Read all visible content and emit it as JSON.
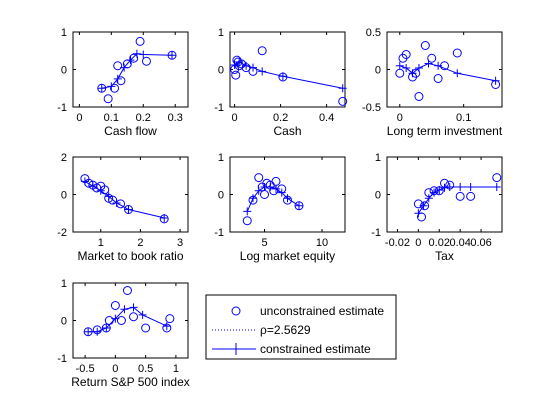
{
  "colors": {
    "series": "#0000ff",
    "axes": "#000000"
  },
  "legend": {
    "entries": [
      "unconstrained estimate",
      "ρ=2.5629",
      "constrained estimate"
    ],
    "styles": [
      "circle-marker",
      "dotted-line",
      "line-plus-marker"
    ]
  },
  "chart_data": [
    {
      "type": "scatter",
      "xlabel": "Cash flow",
      "xlim": [
        -0.02,
        0.34
      ],
      "ylim": [
        -1,
        1
      ],
      "xticks": [
        0,
        0.1,
        0.2,
        0.3
      ],
      "xtick_labels": [
        "0",
        "0.1",
        "0.2",
        "0.3"
      ],
      "yticks": [
        -1,
        0,
        1
      ],
      "ytick_labels": [
        "-1",
        "0",
        "1"
      ],
      "unconstrained": {
        "x": [
          0.07,
          0.09,
          0.11,
          0.12,
          0.13,
          0.15,
          0.17,
          0.19,
          0.21,
          0.29
        ],
        "y": [
          -0.5,
          -0.78,
          -0.5,
          0.1,
          -0.3,
          0.15,
          0.3,
          0.75,
          0.22,
          0.38
        ]
      },
      "constrained": {
        "x": [
          0.07,
          0.1,
          0.12,
          0.14,
          0.16,
          0.18,
          0.2,
          0.29
        ],
        "y": [
          -0.5,
          -0.45,
          -0.25,
          0.05,
          0.25,
          0.42,
          0.4,
          0.38
        ]
      }
    },
    {
      "type": "scatter",
      "xlabel": "Cash",
      "xlim": [
        -0.02,
        0.48
      ],
      "ylim": [
        -1,
        1
      ],
      "xticks": [
        0,
        0.2,
        0.4
      ],
      "xtick_labels": [
        "0",
        "0.2",
        "0.4"
      ],
      "yticks": [
        -1,
        0,
        1
      ],
      "ytick_labels": [
        "-1",
        "0",
        "1"
      ],
      "unconstrained": {
        "x": [
          0.0,
          0.005,
          0.01,
          0.015,
          0.02,
          0.03,
          0.05,
          0.08,
          0.12,
          0.21,
          0.47
        ],
        "y": [
          0.0,
          -0.15,
          0.25,
          0.2,
          0.1,
          0.15,
          0.05,
          -0.05,
          0.5,
          -0.2,
          -0.85
        ]
      },
      "constrained": {
        "x": [
          0.0,
          0.02,
          0.05,
          0.08,
          0.12,
          0.21,
          0.47
        ],
        "y": [
          0.12,
          0.2,
          0.1,
          0.05,
          -0.05,
          -0.18,
          -0.5
        ]
      }
    },
    {
      "type": "scatter",
      "xlabel": "Long term investment",
      "xlim": [
        -0.02,
        0.16
      ],
      "ylim": [
        -0.5,
        0.5
      ],
      "xticks": [
        0,
        0.1
      ],
      "xtick_labels": [
        "0",
        "0.1"
      ],
      "yticks": [
        -0.5,
        0,
        0.5
      ],
      "ytick_labels": [
        "-0.5",
        "0",
        "0.5"
      ],
      "unconstrained": {
        "x": [
          0.0,
          0.005,
          0.01,
          0.02,
          0.025,
          0.03,
          0.04,
          0.05,
          0.06,
          0.07,
          0.09,
          0.15
        ],
        "y": [
          -0.05,
          0.15,
          0.2,
          -0.1,
          -0.05,
          -0.36,
          0.32,
          0.15,
          -0.12,
          0.05,
          0.22,
          -0.2
        ]
      },
      "constrained": {
        "x": [
          0.0,
          0.01,
          0.02,
          0.03,
          0.045,
          0.06,
          0.09,
          0.15
        ],
        "y": [
          0.05,
          0.02,
          -0.05,
          0.02,
          0.08,
          0.05,
          -0.05,
          -0.15
        ]
      }
    },
    {
      "type": "scatter",
      "xlabel": "Market to book ratio",
      "xlim": [
        0.3,
        3.2
      ],
      "ylim": [
        -2,
        2
      ],
      "xticks": [
        1,
        2,
        3
      ],
      "xtick_labels": [
        "1",
        "2",
        "3"
      ],
      "yticks": [
        -2,
        0,
        2
      ],
      "ytick_labels": [
        "-2",
        "0",
        "2"
      ],
      "unconstrained": {
        "x": [
          0.6,
          0.7,
          0.8,
          0.9,
          1.0,
          1.1,
          1.2,
          1.3,
          1.5,
          1.7,
          2.6
        ],
        "y": [
          0.85,
          0.6,
          0.5,
          0.35,
          0.45,
          0.25,
          -0.2,
          -0.3,
          -0.5,
          -0.8,
          -1.3
        ]
      },
      "constrained": {
        "x": [
          0.6,
          0.8,
          1.0,
          1.2,
          1.4,
          1.7,
          2.6
        ],
        "y": [
          0.7,
          0.45,
          0.2,
          -0.1,
          -0.45,
          -0.8,
          -1.25
        ]
      }
    },
    {
      "type": "scatter",
      "xlabel": "Log market equity",
      "xlim": [
        2,
        12
      ],
      "ylim": [
        -1,
        1
      ],
      "xticks": [
        5,
        10
      ],
      "xtick_labels": [
        "5",
        "10"
      ],
      "yticks": [
        -1,
        0,
        1
      ],
      "ytick_labels": [
        "-1",
        "0",
        "1"
      ],
      "unconstrained": {
        "x": [
          3.5,
          4.0,
          4.5,
          4.8,
          5.0,
          5.2,
          5.5,
          5.8,
          6.0,
          6.5,
          7.0,
          8.0
        ],
        "y": [
          -0.7,
          -0.15,
          0.45,
          0.2,
          0.0,
          0.3,
          0.25,
          0.1,
          0.35,
          0.15,
          -0.15,
          -0.3
        ]
      },
      "constrained": {
        "x": [
          3.5,
          4.0,
          4.5,
          5.0,
          5.5,
          6.0,
          6.5,
          7.0,
          8.0
        ],
        "y": [
          -0.45,
          -0.1,
          0.1,
          0.2,
          0.2,
          0.15,
          0.05,
          -0.1,
          -0.3
        ]
      }
    },
    {
      "type": "scatter",
      "xlabel": "Tax",
      "xlim": [
        -0.03,
        0.08
      ],
      "ylim": [
        -1,
        1
      ],
      "xticks": [
        -0.02,
        0,
        0.02,
        0.04,
        0.06
      ],
      "xtick_labels": [
        "-0.02",
        "0",
        "0.02",
        "0.04",
        "0.06"
      ],
      "yticks": [
        -1,
        0,
        1
      ],
      "ytick_labels": [
        "-1",
        "0",
        "1"
      ],
      "unconstrained": {
        "x": [
          0.0,
          0.003,
          0.006,
          0.01,
          0.015,
          0.02,
          0.025,
          0.03,
          0.04,
          0.05,
          0.075
        ],
        "y": [
          -0.25,
          -0.6,
          -0.3,
          0.05,
          0.1,
          0.1,
          0.3,
          0.25,
          -0.05,
          -0.05,
          0.45
        ]
      },
      "constrained": {
        "x": [
          0.0,
          0.005,
          0.01,
          0.015,
          0.02,
          0.025,
          0.03,
          0.04,
          0.05,
          0.075
        ],
        "y": [
          -0.5,
          -0.3,
          -0.1,
          0.05,
          0.12,
          0.18,
          0.2,
          0.2,
          0.2,
          0.2
        ]
      }
    },
    {
      "type": "scatter",
      "xlabel": "Return S&P 500 index",
      "xlim": [
        -0.7,
        1.2
      ],
      "ylim": [
        -1,
        1
      ],
      "xticks": [
        -0.5,
        0,
        0.5,
        1
      ],
      "xtick_labels": [
        "-0.5",
        "0",
        "0.5",
        "1"
      ],
      "yticks": [
        -1,
        0,
        1
      ],
      "ytick_labels": [
        "-1",
        "0",
        "1"
      ],
      "unconstrained": {
        "x": [
          -0.45,
          -0.3,
          -0.15,
          -0.1,
          0.0,
          0.1,
          0.2,
          0.3,
          0.5,
          0.85,
          0.9
        ],
        "y": [
          -0.3,
          -0.25,
          -0.2,
          0.0,
          0.4,
          0.0,
          0.8,
          0.1,
          -0.2,
          -0.2,
          0.05
        ]
      },
      "constrained": {
        "x": [
          -0.45,
          -0.3,
          -0.15,
          0.0,
          0.15,
          0.3,
          0.45,
          0.85
        ],
        "y": [
          -0.3,
          -0.3,
          -0.2,
          0.05,
          0.3,
          0.35,
          0.15,
          -0.15
        ]
      }
    }
  ]
}
